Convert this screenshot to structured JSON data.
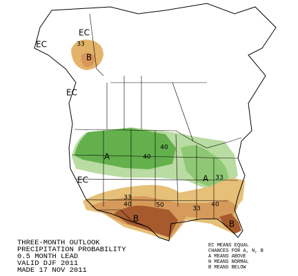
{
  "title_block": {
    "lines": [
      "THREE-MONTH OUTLOOK",
      "PRECIPITATION PROBABILITY",
      "0.5 MONTH LEAD",
      "VALID DJF 2011",
      "MADE 17 NOV 2011"
    ]
  },
  "legend": {
    "lines": [
      "EC MEANS EQUAL",
      "CHANCES FOR A, N, B",
      "A MEANS ABOVE",
      "N MEANS NORMAL",
      "B MEANS BELOW"
    ]
  },
  "map_labels": [
    "EC",
    "EC",
    "EC",
    "EC",
    33,
    "B",
    "A",
    "A",
    40,
    40,
    33,
    33,
    40,
    50,
    33,
    40,
    "B",
    "B"
  ]
}
